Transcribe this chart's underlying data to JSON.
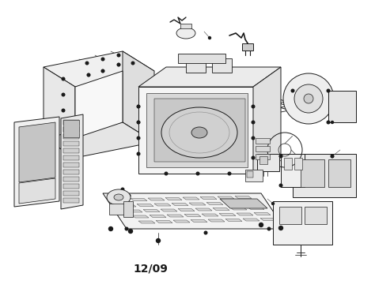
{
  "label": "12/09",
  "label_fontsize": 10,
  "label_fontweight": "bold",
  "background_color": "#ffffff",
  "figure_width": 4.74,
  "figure_height": 3.65,
  "dpi": 100,
  "line_color": "#1a1a1a",
  "line_width": 0.7
}
